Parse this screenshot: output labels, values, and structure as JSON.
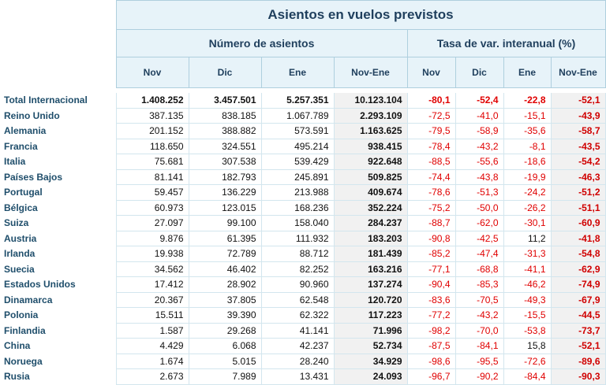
{
  "header": {
    "title": "Asientos en vuelos previstos",
    "group_seats": "Número de asientos",
    "group_rate": "Tasa de var. interanual (%)",
    "columns": [
      "Nov",
      "Dic",
      "Ene",
      "Nov-Ene",
      "Nov",
      "Dic",
      "Ene",
      "Nov-Ene"
    ]
  },
  "rows": [
    {
      "label": "Total Internacional",
      "nov": "1.408.252",
      "dic": "3.457.501",
      "ene": "5.257.351",
      "total": "10.123.104",
      "r_nov": "-80,1",
      "r_dic": "-52,4",
      "r_ene": "-22,8",
      "r_total": "-52,1"
    },
    {
      "label": "Reino Unido",
      "nov": "387.135",
      "dic": "838.185",
      "ene": "1.067.789",
      "total": "2.293.109",
      "r_nov": "-72,5",
      "r_dic": "-41,0",
      "r_ene": "-15,1",
      "r_total": "-43,9"
    },
    {
      "label": "Alemania",
      "nov": "201.152",
      "dic": "388.882",
      "ene": "573.591",
      "total": "1.163.625",
      "r_nov": "-79,5",
      "r_dic": "-58,9",
      "r_ene": "-35,6",
      "r_total": "-58,7"
    },
    {
      "label": "Francia",
      "nov": "118.650",
      "dic": "324.551",
      "ene": "495.214",
      "total": "938.415",
      "r_nov": "-78,4",
      "r_dic": "-43,2",
      "r_ene": "-8,1",
      "r_total": "-43,5"
    },
    {
      "label": "Italia",
      "nov": "75.681",
      "dic": "307.538",
      "ene": "539.429",
      "total": "922.648",
      "r_nov": "-88,5",
      "r_dic": "-55,6",
      "r_ene": "-18,6",
      "r_total": "-54,2"
    },
    {
      "label": "Países Bajos",
      "nov": "81.141",
      "dic": "182.793",
      "ene": "245.891",
      "total": "509.825",
      "r_nov": "-74,4",
      "r_dic": "-43,8",
      "r_ene": "-19,9",
      "r_total": "-46,3"
    },
    {
      "label": "Portugal",
      "nov": "59.457",
      "dic": "136.229",
      "ene": "213.988",
      "total": "409.674",
      "r_nov": "-78,6",
      "r_dic": "-51,3",
      "r_ene": "-24,2",
      "r_total": "-51,2"
    },
    {
      "label": "Bélgica",
      "nov": "60.973",
      "dic": "123.015",
      "ene": "168.236",
      "total": "352.224",
      "r_nov": "-75,2",
      "r_dic": "-50,0",
      "r_ene": "-26,2",
      "r_total": "-51,1"
    },
    {
      "label": "Suiza",
      "nov": "27.097",
      "dic": "99.100",
      "ene": "158.040",
      "total": "284.237",
      "r_nov": "-88,7",
      "r_dic": "-62,0",
      "r_ene": "-30,1",
      "r_total": "-60,9"
    },
    {
      "label": "Austria",
      "nov": "9.876",
      "dic": "61.395",
      "ene": "111.932",
      "total": "183.203",
      "r_nov": "-90,8",
      "r_dic": "-42,5",
      "r_ene": "11,2",
      "r_total": "-41,8"
    },
    {
      "label": "Irlanda",
      "nov": "19.938",
      "dic": "72.789",
      "ene": "88.712",
      "total": "181.439",
      "r_nov": "-85,2",
      "r_dic": "-47,4",
      "r_ene": "-31,3",
      "r_total": "-54,8"
    },
    {
      "label": "Suecia",
      "nov": "34.562",
      "dic": "46.402",
      "ene": "82.252",
      "total": "163.216",
      "r_nov": "-77,1",
      "r_dic": "-68,8",
      "r_ene": "-41,1",
      "r_total": "-62,9"
    },
    {
      "label": "Estados Unidos",
      "nov": "17.412",
      "dic": "28.902",
      "ene": "90.960",
      "total": "137.274",
      "r_nov": "-90,4",
      "r_dic": "-85,3",
      "r_ene": "-46,2",
      "r_total": "-74,9"
    },
    {
      "label": "Dinamarca",
      "nov": "20.367",
      "dic": "37.805",
      "ene": "62.548",
      "total": "120.720",
      "r_nov": "-83,6",
      "r_dic": "-70,5",
      "r_ene": "-49,3",
      "r_total": "-67,9"
    },
    {
      "label": "Polonia",
      "nov": "15.511",
      "dic": "39.390",
      "ene": "62.322",
      "total": "117.223",
      "r_nov": "-77,2",
      "r_dic": "-43,2",
      "r_ene": "-15,5",
      "r_total": "-44,5"
    },
    {
      "label": "Finlandia",
      "nov": "1.587",
      "dic": "29.268",
      "ene": "41.141",
      "total": "71.996",
      "r_nov": "-98,2",
      "r_dic": "-70,0",
      "r_ene": "-53,8",
      "r_total": "-73,7"
    },
    {
      "label": "China",
      "nov": "4.429",
      "dic": "6.068",
      "ene": "42.237",
      "total": "52.734",
      "r_nov": "-87,5",
      "r_dic": "-84,1",
      "r_ene": "15,8",
      "r_total": "-52,1"
    },
    {
      "label": "Noruega",
      "nov": "1.674",
      "dic": "5.015",
      "ene": "28.240",
      "total": "34.929",
      "r_nov": "-98,6",
      "r_dic": "-95,5",
      "r_ene": "-72,6",
      "r_total": "-89,6"
    },
    {
      "label": "Rusia",
      "nov": "2.673",
      "dic": "7.989",
      "ene": "13.431",
      "total": "24.093",
      "r_nov": "-96,7",
      "r_dic": "-90,2",
      "r_ene": "-84,4",
      "r_total": "-90,3"
    }
  ]
}
